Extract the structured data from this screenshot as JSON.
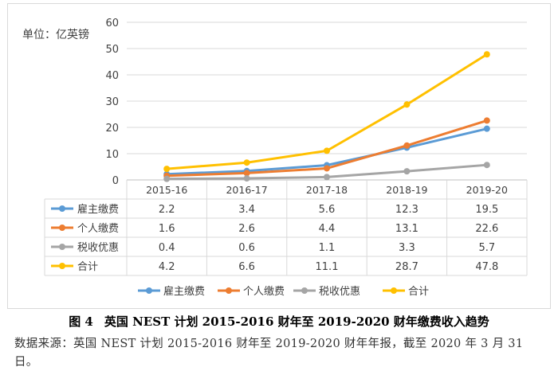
{
  "chart_data": {
    "type": "line",
    "unit_label": "单位：亿英镑",
    "categories": [
      "2015-16",
      "2016-17",
      "2017-18",
      "2018-19",
      "2019-20"
    ],
    "y_ticks": [
      0,
      10,
      20,
      30,
      40,
      50,
      60
    ],
    "ylim": [
      0,
      60
    ],
    "grid": true,
    "legend_position": "bottom",
    "series": [
      {
        "name": "雇主缴费",
        "color": "#5b9bd5",
        "values": [
          2.2,
          3.4,
          5.6,
          12.3,
          19.5
        ],
        "labels": [
          "2.2",
          "3.4",
          "5.6",
          "12.3",
          "19.5"
        ]
      },
      {
        "name": "个人缴费",
        "color": "#ed7d31",
        "values": [
          1.6,
          2.6,
          4.4,
          13.1,
          22.6
        ],
        "labels": [
          "1.6",
          "2.6",
          "4.4",
          "13.1",
          "22.6"
        ]
      },
      {
        "name": "税收优惠",
        "color": "#a5a5a5",
        "values": [
          0.4,
          0.6,
          1.1,
          3.3,
          5.7
        ],
        "labels": [
          "0.4",
          "0.6",
          "1.1",
          "3.3",
          "5.7"
        ]
      },
      {
        "name": "合计",
        "color": "#ffc000",
        "values": [
          4.2,
          6.6,
          11.1,
          28.7,
          47.8
        ],
        "labels": [
          "4.2",
          "6.6",
          "11.1",
          "28.7",
          "47.8"
        ]
      }
    ]
  },
  "caption": {
    "figure_no": "图 4",
    "title": "英国 NEST 计划 2015-2016 财年至 2019-2020 财年缴费收入趋势"
  },
  "source_note": "数据来源：英国 NEST 计划 2015-2016 财年至 2019-2020 财年年报，截至 2020 年 3 月 31 日。"
}
